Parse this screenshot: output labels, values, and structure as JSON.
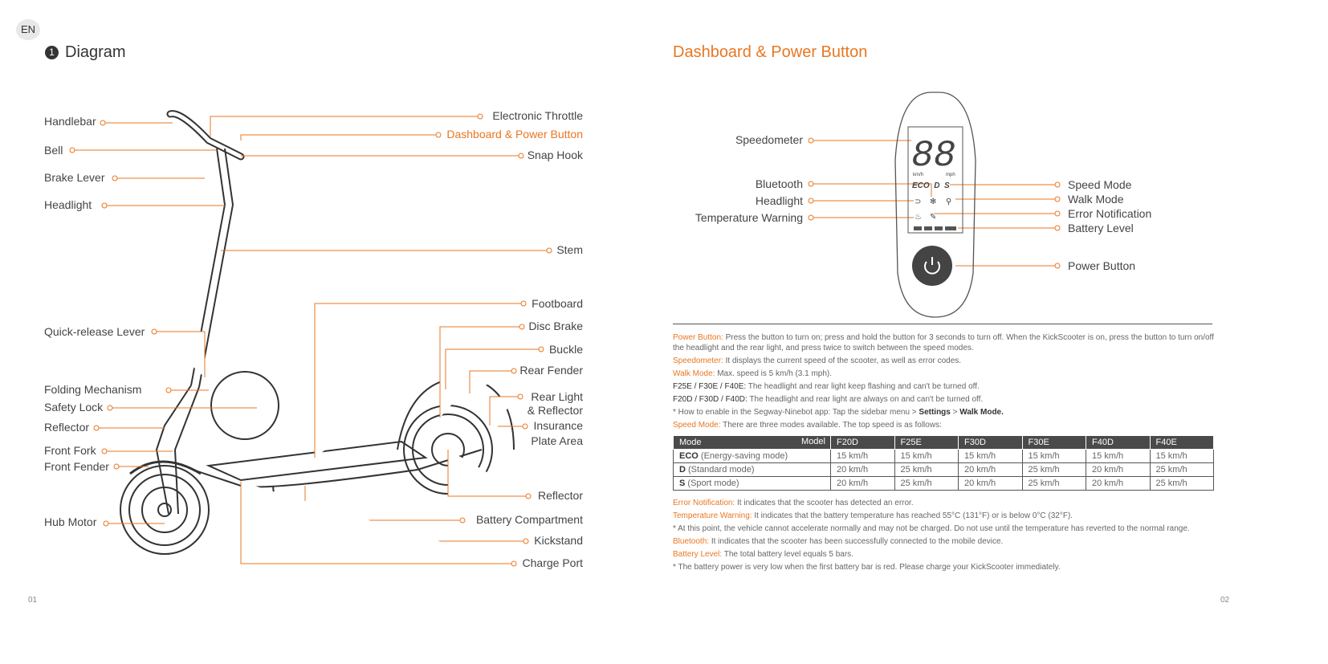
{
  "lang": "EN",
  "left": {
    "num": "1",
    "title": "Diagram",
    "labels_left": [
      "Handlebar",
      "Bell",
      "Brake Lever",
      "Headlight",
      "Quick-release Lever",
      "Folding Mechanism",
      "Safety Lock",
      "Reflector",
      "Front Fork",
      "Front Fender",
      "Hub Motor"
    ],
    "labels_right": [
      "Electronic Throttle",
      "Dashboard & Power Button",
      "Snap Hook",
      "Stem",
      "Footboard",
      "Disc Brake",
      "Buckle",
      "Rear Fender",
      "Rear Light",
      "& Reflector",
      "Insurance",
      "Plate Area",
      "Reflector",
      "Battery Compartment",
      "Kickstand",
      "Charge Port"
    ],
    "page": "01"
  },
  "right": {
    "title": "Dashboard & Power Button",
    "dash_left": [
      "Speedometer",
      "Bluetooth",
      "Headlight",
      "Temperature Warning"
    ],
    "dash_right": [
      "Speed Mode",
      "Walk Mode",
      "Error Notification",
      "Battery Level",
      "Power Button"
    ],
    "display": {
      "digits": "88",
      "unit_kmh": "km/h",
      "unit_mph": "mph",
      "modes": "ECO  D  S"
    },
    "text": {
      "power_k": "Power Button:",
      "power": " Press the button to turn on; press and hold the button for 3 seconds to turn off. When the KickScooter is on, press the button to turn on/off the headlight and the rear light, and press twice to switch between the speed modes.",
      "speedo_k": "Speedometer:",
      "speedo": " It displays the current speed of the scooter, as well as error codes.",
      "walk_k": "Walk Mode:",
      "walk": " Max. speed is 5 km/h (3.1 mph).",
      "e_k": "F25E / F30E / F40E:",
      "e": " The headlight and rear light keep flashing and can't be turned off.",
      "d_k": "F20D / F30D / F40D:",
      "d": " The headlight and rear light are always on and can't be turned off.",
      "howto": "* How to enable in the Segway-Ninebot app: Tap the sidebar menu > ",
      "settings": "Settings",
      "gt": " > ",
      "walkmode": "Walk Mode.",
      "speed_k": "Speed Mode:",
      "speed": " There are three modes available. The top speed is as follows:",
      "err_k": "Error Notification:",
      "err": " It indicates that the scooter has detected an error.",
      "temp_k": "Temperature Warning:",
      "temp": " It indicates that the battery temperature has reached 55°C (131°F)  or is below 0°C (32°F).",
      "temp_note": "* At this point, the vehicle cannot accelerate normally and may not be charged. Do not use until the temperature has reverted to the normal range.",
      "bt_k": "Bluetooth:",
      "bt": " It indicates that the scooter has been successfully connected to the mobile device.",
      "bat_k": "Battery Level:",
      "bat": " The total battery level equals 5 bars.",
      "bat_note": "*  The battery power is very low when the first battery bar is red. Please charge your KickScooter immediately."
    },
    "table": {
      "corner_mode": "Mode",
      "corner_model": "Model",
      "models": [
        "F20D",
        "F25E",
        "F30D",
        "F30E",
        "F40D",
        "F40E"
      ],
      "rows": [
        {
          "mode": "ECO",
          "desc": " (Energy-saving mode)",
          "values": [
            "15 km/h",
            "15 km/h",
            "15 km/h",
            "15 km/h",
            "15 km/h",
            "15 km/h"
          ]
        },
        {
          "mode": "D",
          "desc": " (Standard mode)",
          "values": [
            "20 km/h",
            "25 km/h",
            "20 km/h",
            "25 km/h",
            "20 km/h",
            "25 km/h"
          ]
        },
        {
          "mode": "S",
          "desc": " (Sport mode)",
          "values": [
            "20 km/h",
            "25 km/h",
            "20 km/h",
            "25 km/h",
            "20 km/h",
            "25 km/h"
          ]
        }
      ]
    },
    "page": "02"
  },
  "colors": {
    "accent": "#e87722",
    "table_header": "#4a4a4a"
  }
}
